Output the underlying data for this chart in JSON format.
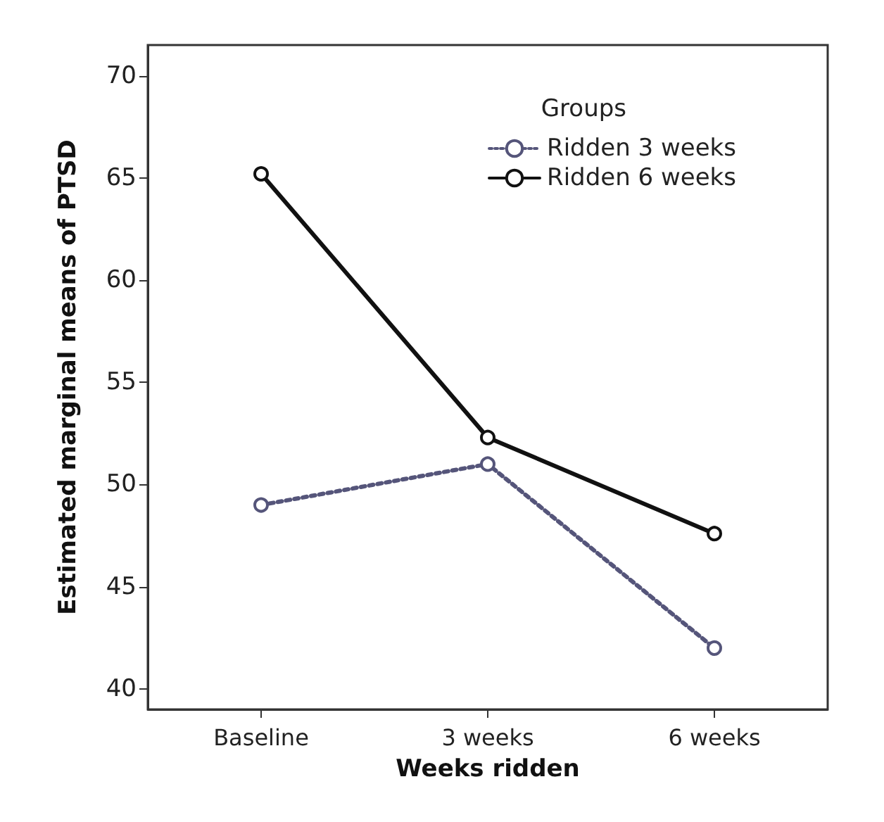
{
  "chart_data": {
    "type": "line",
    "xlabel": "Weeks ridden",
    "ylabel": "Estimated marginal means of PTSD",
    "legend_title": "Groups",
    "categories": [
      "Baseline",
      "3 weeks",
      "6 weeks"
    ],
    "series": [
      {
        "name": "Ridden 3 weeks",
        "color": "#55557a",
        "line_style": "dotted",
        "values": [
          49.0,
          51.0,
          42.0
        ]
      },
      {
        "name": "Ridden 6 weeks",
        "color": "#111111",
        "line_style": "solid",
        "values": [
          65.2,
          52.3,
          47.6
        ]
      }
    ],
    "ylim": [
      39,
      71.5
    ],
    "yticks": [
      40,
      45,
      50,
      55,
      60,
      65,
      70
    ],
    "grid": false,
    "legend": "top right",
    "marker": "circle"
  }
}
